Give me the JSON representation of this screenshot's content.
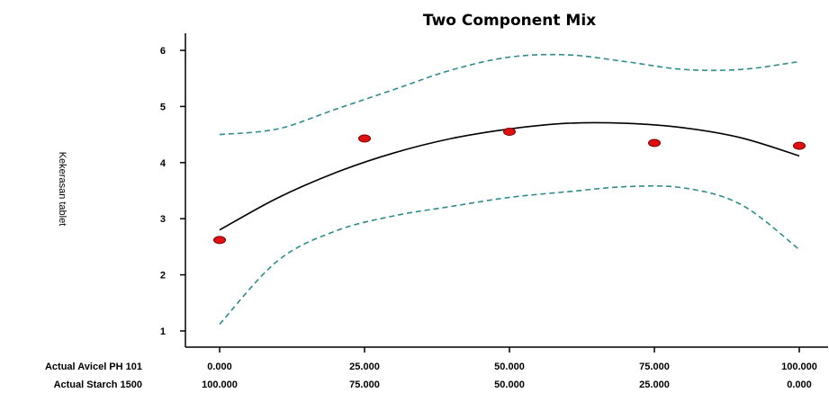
{
  "chart_data": {
    "type": "line",
    "title": "Two Component Mix",
    "ylabel": "Kekerasan tablet",
    "xlabel_rows": [
      {
        "label": "Actual Avicel PH 101",
        "ticks": [
          "0.000",
          "25.000",
          "50.000",
          "75.000",
          "100.000"
        ]
      },
      {
        "label": "Actual Starch 1500",
        "ticks": [
          "100.000",
          "75.000",
          "50.000",
          "25.000",
          "0.000"
        ]
      }
    ],
    "x": [
      0,
      25,
      50,
      75,
      100
    ],
    "xlim": [
      0,
      100
    ],
    "ylim": [
      1,
      6
    ],
    "yticks": [
      1,
      2,
      3,
      4,
      5,
      6
    ],
    "grid": false,
    "series": [
      {
        "role": "fit",
        "style": "solid",
        "color": "#000000",
        "x": [
          0,
          10,
          20,
          30,
          40,
          50,
          60,
          70,
          80,
          90,
          100
        ],
        "y": [
          2.8,
          3.37,
          3.82,
          4.17,
          4.43,
          4.6,
          4.7,
          4.7,
          4.62,
          4.44,
          4.12
        ]
      },
      {
        "role": "upper-bound",
        "style": "dashed",
        "color": "#2e8b8b",
        "x": [
          0,
          10,
          20,
          30,
          40,
          50,
          60,
          70,
          80,
          90,
          100
        ],
        "y": [
          4.5,
          4.6,
          4.95,
          5.3,
          5.65,
          5.88,
          5.92,
          5.8,
          5.66,
          5.66,
          5.8
        ]
      },
      {
        "role": "lower-bound",
        "style": "dashed",
        "color": "#2e8b8b",
        "x": [
          0,
          10,
          20,
          30,
          40,
          50,
          60,
          70,
          80,
          90,
          100
        ],
        "y": [
          1.12,
          2.25,
          2.78,
          3.05,
          3.22,
          3.38,
          3.48,
          3.57,
          3.55,
          3.25,
          2.45
        ]
      },
      {
        "role": "observed",
        "style": "points",
        "color": "#e01010",
        "x": [
          0,
          25,
          50,
          75,
          100
        ],
        "y": [
          2.62,
          4.43,
          4.55,
          4.35,
          4.3
        ]
      }
    ]
  }
}
